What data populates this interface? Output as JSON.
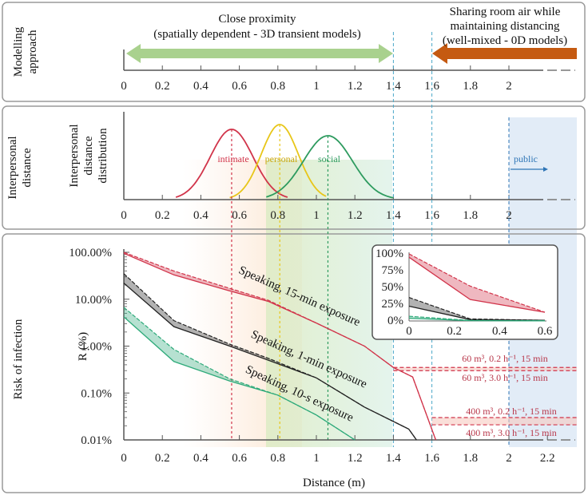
{
  "panels": {
    "modelling": {
      "side_label": [
        "Modelling",
        "approach"
      ],
      "close_title": "Close proximity",
      "close_sub": "(spatially dependent - 3D transient models)",
      "room_lines": [
        "Sharing room air while",
        "maintaining distancing",
        "(well-mixed - 0D models)"
      ],
      "colors": {
        "close": "#a9d18e",
        "room": "#c55a11"
      }
    },
    "interpersonal": {
      "side_label": [
        "Interpersonal",
        "distance"
      ],
      "axis_label": [
        "Interpersonal",
        "distance",
        "distribution"
      ],
      "zones": [
        {
          "name": "intimate",
          "peak": 0.56,
          "range": [
            0.27,
            0.85
          ],
          "color": "#d1344a"
        },
        {
          "name": "personal",
          "peak": 0.81,
          "range": [
            0.55,
            1.05
          ],
          "color": "#e8c619"
        },
        {
          "name": "social",
          "peak": 1.06,
          "range": [
            0.74,
            1.4
          ],
          "color": "#2e9b5f"
        }
      ],
      "public_label": "public",
      "public_color": "#2e75b6"
    },
    "risk": {
      "side_label": "Risk of infection"
    }
  },
  "x_ticks": [
    "0",
    "0.2",
    "0.4",
    "0.6",
    "0.8",
    "1",
    "1.2",
    "1.4",
    "1.6",
    "1.8",
    "2"
  ],
  "x_ticks_risk": [
    "0",
    "0.2",
    "0.4",
    "0.6",
    "0.8",
    "1",
    "1.2",
    "1.4",
    "1.6",
    "1.8",
    "2",
    "2.2"
  ],
  "chart_data": [
    {
      "type": "line",
      "title": "",
      "xlabel": "Distance (m)",
      "ylabel": "R (%)",
      "yscale": "log",
      "ylim": [
        0.01,
        100
      ],
      "xlim": [
        0,
        2.35
      ],
      "y_ticks": [
        "100.00%",
        "10.00%",
        "1.00%",
        "0.10%",
        "0.01%"
      ],
      "series": [
        {
          "name": "Speaking, 15-min exposure",
          "color": "#d1344a",
          "x": [
            0,
            0.26,
            0.55,
            0.75,
            1.0,
            1.25,
            1.4,
            1.5,
            1.62
          ],
          "upper": [
            100,
            40,
            17,
            9.5,
            3.1,
            1.0,
            0.35,
            0.22,
            0.01
          ],
          "lower": [
            95,
            33,
            15,
            9,
            3.1,
            1.0,
            0.35,
            0.22,
            0.01
          ]
        },
        {
          "name": "Speaking, 1-min exposure",
          "color": "#222222",
          "x": [
            0,
            0.26,
            0.55,
            0.75,
            1.0,
            1.25,
            1.48,
            1.52
          ],
          "upper": [
            35,
            3.5,
            1.1,
            0.55,
            0.21,
            0.05,
            0.017,
            0.01
          ],
          "lower": [
            22,
            2.6,
            1.0,
            0.5,
            0.21,
            0.05,
            0.017,
            0.01
          ]
        },
        {
          "name": "Speaking, 10-s exposure",
          "color": "#2eaa7a",
          "x": [
            0,
            0.26,
            0.55,
            0.8,
            1.0,
            1.2
          ],
          "upper": [
            6.7,
            0.85,
            0.2,
            0.09,
            0.034,
            0.01
          ],
          "lower": [
            4.2,
            0.47,
            0.18,
            0.09,
            0.034,
            0.01
          ]
        }
      ],
      "reference_lines": [
        {
          "label": "60 m³, 0.2 h⁻¹, 15 min",
          "value": 0.35,
          "x_from": 1.4
        },
        {
          "label": "60 m³, 3.0 h⁻¹, 15 min",
          "value": 0.3,
          "x_from": 1.4
        },
        {
          "label": "400 m³, 0.2 h⁻¹, 15 min",
          "value": 0.03,
          "x_from": 1.6
        },
        {
          "label": "400 m³, 3.0 h⁻¹, 15 min",
          "value": 0.021,
          "x_from": 1.6
        }
      ]
    },
    {
      "type": "line",
      "title": "",
      "xlim": [
        0,
        0.6
      ],
      "ylim": [
        0,
        100
      ],
      "x_ticks": [
        "0",
        "0.2",
        "0.4",
        "0.6"
      ],
      "y_ticks": [
        "100%",
        "75%",
        "50%",
        "25%",
        "0%"
      ],
      "series": [
        {
          "color": "#d1344a",
          "x": [
            0,
            0.27,
            0.6
          ],
          "upper": [
            100,
            52,
            13
          ],
          "lower": [
            95,
            32,
            13
          ]
        },
        {
          "color": "#222222",
          "x": [
            0,
            0.27,
            0.6
          ],
          "upper": [
            35,
            3,
            1
          ],
          "lower": [
            22,
            2,
            1
          ]
        },
        {
          "color": "#2eaa7a",
          "x": [
            0,
            0.27,
            0.6
          ],
          "upper": [
            7,
            0.8,
            0.2
          ],
          "lower": [
            4,
            0.5,
            0.2
          ]
        }
      ]
    }
  ]
}
